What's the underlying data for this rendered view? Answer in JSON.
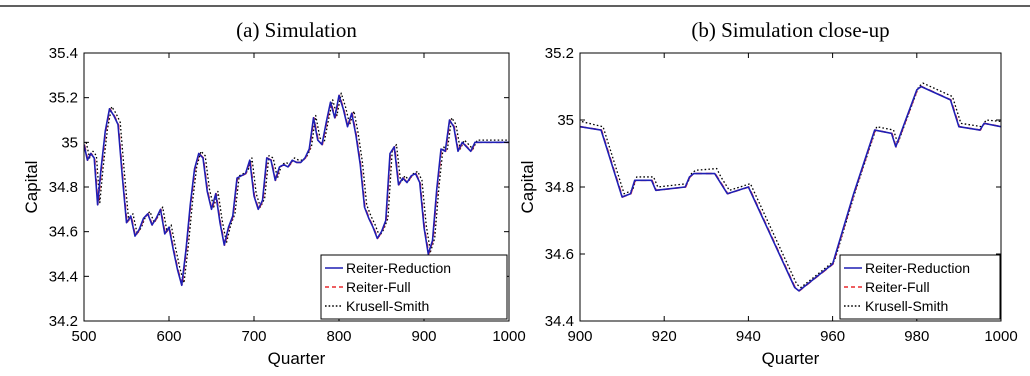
{
  "chart_data": [
    {
      "type": "line",
      "title": "(a) Simulation",
      "xlabel": "Quarter",
      "ylabel": "Capital",
      "xlim": [
        500,
        1000
      ],
      "ylim": [
        34.2,
        35.4
      ],
      "xticks": [
        "500",
        "600",
        "700",
        "800",
        "900",
        "1000"
      ],
      "yticks": [
        "34.2",
        "34.4",
        "34.6",
        "34.8",
        "35",
        "35.2",
        "35.4"
      ],
      "legend": "bottom-right",
      "x": [
        500,
        504,
        508,
        512,
        516,
        520,
        525,
        530,
        535,
        540,
        545,
        550,
        555,
        560,
        565,
        570,
        575,
        580,
        585,
        590,
        595,
        600,
        605,
        610,
        615,
        620,
        625,
        630,
        635,
        640,
        645,
        650,
        655,
        660,
        665,
        670,
        675,
        680,
        685,
        690,
        695,
        700,
        705,
        710,
        715,
        720,
        725,
        730,
        735,
        740,
        745,
        750,
        755,
        760,
        765,
        770,
        775,
        780,
        785,
        790,
        795,
        800,
        805,
        810,
        815,
        820,
        825,
        830,
        835,
        840,
        845,
        850,
        855,
        860,
        865,
        870,
        875,
        880,
        885,
        890,
        895,
        900,
        905,
        910,
        915,
        920,
        925,
        930,
        935,
        940,
        945,
        950,
        955,
        960,
        965,
        970,
        975,
        980,
        985,
        990,
        995,
        1000
      ],
      "series": [
        {
          "name": "Reiter-Reduction",
          "color": "#1f1fb4",
          "style": "solid",
          "values": [
            34.99,
            34.92,
            34.95,
            34.93,
            34.72,
            34.88,
            35.05,
            35.15,
            35.12,
            35.08,
            34.85,
            34.64,
            34.67,
            34.58,
            34.61,
            34.66,
            34.68,
            34.63,
            34.66,
            34.7,
            34.59,
            34.62,
            34.52,
            34.43,
            34.36,
            34.52,
            34.72,
            34.88,
            34.95,
            34.93,
            34.78,
            34.7,
            34.77,
            34.64,
            34.54,
            34.62,
            34.67,
            34.84,
            34.85,
            34.86,
            34.92,
            34.76,
            34.7,
            34.74,
            34.93,
            34.92,
            34.83,
            34.89,
            34.9,
            34.89,
            34.92,
            34.91,
            34.91,
            34.93,
            34.97,
            35.11,
            35.01,
            34.99,
            35.09,
            35.18,
            35.11,
            35.21,
            35.15,
            35.07,
            35.13,
            35.03,
            34.9,
            34.71,
            34.66,
            34.62,
            34.57,
            34.6,
            34.65,
            34.95,
            34.98,
            34.81,
            34.84,
            34.82,
            34.85,
            34.86,
            34.82,
            34.62,
            34.5,
            34.56,
            34.79,
            34.97,
            34.96,
            35.1,
            35.07,
            34.96,
            35.0,
            34.98,
            34.96,
            35.0,
            35.0,
            35.0,
            35.0,
            35.0,
            35.0,
            35.0,
            35.0,
            35.0
          ]
        },
        {
          "name": "Reiter-Full",
          "color": "#e8282d",
          "style": "dashed",
          "values": [
            34.99,
            34.92,
            34.95,
            34.93,
            34.72,
            34.88,
            35.05,
            35.15,
            35.12,
            35.08,
            34.85,
            34.64,
            34.67,
            34.58,
            34.61,
            34.66,
            34.68,
            34.63,
            34.66,
            34.7,
            34.59,
            34.62,
            34.52,
            34.43,
            34.36,
            34.52,
            34.72,
            34.88,
            34.95,
            34.93,
            34.78,
            34.7,
            34.77,
            34.64,
            34.54,
            34.62,
            34.67,
            34.84,
            34.85,
            34.86,
            34.92,
            34.76,
            34.7,
            34.74,
            34.93,
            34.92,
            34.83,
            34.89,
            34.9,
            34.89,
            34.92,
            34.91,
            34.91,
            34.93,
            34.97,
            35.11,
            35.01,
            34.99,
            35.09,
            35.18,
            35.11,
            35.21,
            35.15,
            35.07,
            35.13,
            35.03,
            34.9,
            34.71,
            34.66,
            34.62,
            34.57,
            34.6,
            34.65,
            34.95,
            34.98,
            34.81,
            34.84,
            34.82,
            34.85,
            34.86,
            34.82,
            34.62,
            34.5,
            34.56,
            34.79,
            34.97,
            34.96,
            35.1,
            35.07,
            34.96,
            35.0,
            34.98,
            34.96,
            35.0,
            35.0,
            35.0,
            35.0,
            35.0,
            35.0,
            35.0,
            35.0,
            35.0
          ]
        },
        {
          "name": "Krusell-Smith",
          "color": "#000000",
          "style": "dotted",
          "values": [
            35.0,
            34.93,
            34.96,
            34.94,
            34.73,
            34.89,
            35.06,
            35.16,
            35.13,
            35.09,
            34.86,
            34.65,
            34.68,
            34.59,
            34.62,
            34.67,
            34.69,
            34.64,
            34.67,
            34.71,
            34.6,
            34.63,
            34.53,
            34.44,
            34.37,
            34.53,
            34.73,
            34.89,
            34.96,
            34.94,
            34.79,
            34.71,
            34.78,
            34.65,
            34.55,
            34.63,
            34.68,
            34.85,
            34.86,
            34.87,
            34.93,
            34.77,
            34.71,
            34.75,
            34.94,
            34.93,
            34.84,
            34.9,
            34.91,
            34.9,
            34.93,
            34.92,
            34.92,
            34.94,
            34.98,
            35.12,
            35.02,
            35.0,
            35.1,
            35.19,
            35.12,
            35.22,
            35.16,
            35.08,
            35.14,
            35.04,
            34.91,
            34.72,
            34.67,
            34.63,
            34.58,
            34.61,
            34.66,
            34.96,
            34.99,
            34.82,
            34.85,
            34.83,
            34.86,
            34.87,
            34.83,
            34.63,
            34.51,
            34.57,
            34.8,
            34.98,
            34.97,
            35.11,
            35.08,
            34.97,
            35.01,
            34.99,
            34.97,
            35.01,
            35.01,
            35.01,
            35.01,
            35.01,
            35.01,
            35.01,
            35.01,
            35.01
          ]
        }
      ]
    },
    {
      "type": "line",
      "title": "(b) Simulation close-up",
      "xlabel": "Quarter",
      "ylabel": "Capital",
      "xlim": [
        900,
        1000
      ],
      "ylim": [
        34.4,
        35.2
      ],
      "xticks": [
        "900",
        "920",
        "940",
        "960",
        "980",
        "1000"
      ],
      "yticks": [
        "34.4",
        "34.6",
        "34.8",
        "35",
        "35.2"
      ],
      "legend": "bottom-right",
      "x": [
        900,
        905,
        910,
        912,
        913,
        917,
        918,
        925,
        926,
        927,
        932,
        933,
        935,
        940,
        951,
        952,
        958,
        960,
        965,
        970,
        974,
        975,
        980,
        981,
        988,
        990,
        995,
        996,
        1000
      ],
      "series": [
        {
          "name": "Reiter-Reduction",
          "color": "#1f1fb4",
          "style": "solid",
          "values": [
            34.98,
            34.97,
            34.77,
            34.78,
            34.82,
            34.82,
            34.79,
            34.8,
            34.83,
            34.84,
            34.84,
            34.82,
            34.78,
            34.8,
            34.5,
            34.49,
            34.55,
            34.57,
            34.78,
            34.97,
            34.96,
            34.92,
            35.09,
            35.1,
            35.06,
            34.98,
            34.97,
            34.99,
            34.98
          ]
        },
        {
          "name": "Reiter-Full",
          "color": "#e8282d",
          "style": "dashed",
          "values": [
            34.98,
            34.97,
            34.77,
            34.78,
            34.82,
            34.82,
            34.79,
            34.8,
            34.83,
            34.84,
            34.84,
            34.82,
            34.78,
            34.8,
            34.5,
            34.49,
            34.55,
            34.57,
            34.78,
            34.97,
            34.96,
            34.92,
            35.09,
            35.1,
            35.06,
            34.98,
            34.97,
            34.99,
            34.98
          ]
        },
        {
          "name": "Krusell-Smith",
          "color": "#000000",
          "style": "dotted",
          "values": [
            34.995,
            34.98,
            34.78,
            34.79,
            34.83,
            34.83,
            34.8,
            34.81,
            34.84,
            34.85,
            34.855,
            34.83,
            34.79,
            34.81,
            34.51,
            34.5,
            34.56,
            34.58,
            34.79,
            34.98,
            34.97,
            34.93,
            35.1,
            35.11,
            35.07,
            34.99,
            34.98,
            35.0,
            34.995
          ]
        }
      ]
    }
  ]
}
